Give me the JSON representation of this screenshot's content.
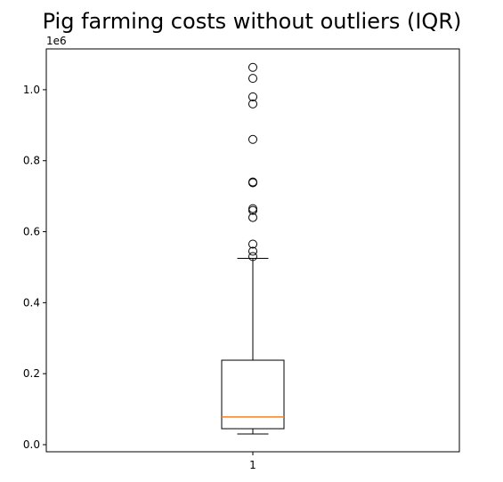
{
  "chart_data": {
    "type": "box",
    "title": "Pig farming costs without outliers (IQR)",
    "xlabel": "",
    "ylabel": "",
    "y_offset_label": "1e6",
    "y_scale": 1000000,
    "ylim": [
      -20000,
      1115000
    ],
    "yticks": [
      0.0,
      200000,
      400000,
      600000,
      800000,
      1000000
    ],
    "ytick_labels": [
      "0.0",
      "0.2",
      "0.4",
      "0.6",
      "0.8",
      "1.0"
    ],
    "categories": [
      "1"
    ],
    "grid": false,
    "colors": {
      "box": "#000000",
      "median": "#ff7f0e",
      "flier": "#000000"
    },
    "boxes": [
      {
        "label": "1",
        "whisker_low": 30000,
        "q1": 45000,
        "median": 78000,
        "q3": 238000,
        "whisker_high": 525000,
        "fliers": [
          530000,
          545000,
          565000,
          640000,
          660000,
          665000,
          738000,
          740000,
          860000,
          960000,
          980000,
          1032000,
          1063000
        ]
      }
    ]
  }
}
